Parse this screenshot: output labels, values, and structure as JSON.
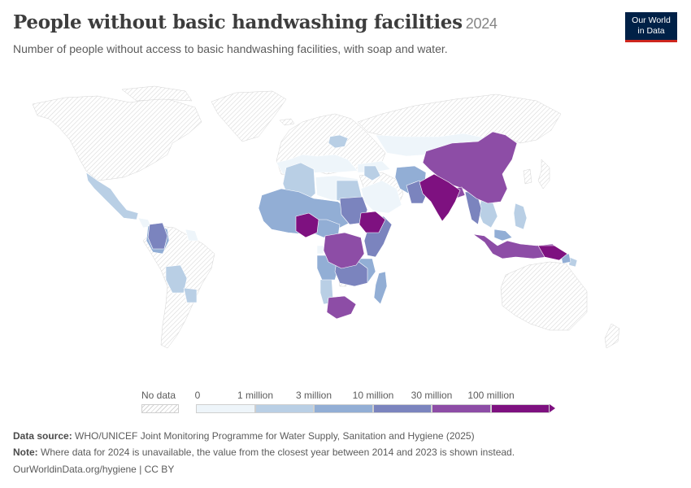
{
  "header": {
    "title": "People without basic handwashing facilities",
    "year": "2024",
    "subtitle": "Number of people without access to basic handwashing facilities, with soap and water."
  },
  "logo": {
    "line1": "Our World",
    "line2": "in Data"
  },
  "legend": {
    "no_data_label": "No data",
    "ticks": [
      "0",
      "1 million",
      "3 million",
      "10 million",
      "30 million",
      "100 million"
    ],
    "colors": [
      "#eef5fa",
      "#b9cfe5",
      "#92aed5",
      "#7b84be",
      "#8d4da6",
      "#7e1180"
    ]
  },
  "map_data": {
    "type": "choropleth",
    "color_key": {
      "nodata": "no data",
      "c0": "0 – 1 million",
      "c1": "1 – 3 million",
      "c2": "3 – 10 million",
      "c3": "10 – 30 million",
      "c4": "30 – 100 million",
      "c5": "100 million +"
    }
  },
  "footer": {
    "source_label": "Data source:",
    "source_text": "WHO/UNICEF Joint Monitoring Programme for Water Supply, Sanitation and Hygiene (2025)",
    "note_label": "Note:",
    "note_text": "Where data for 2024 is unavailable, the value from the closest year between 2014 and 2023 is shown instead.",
    "url": "OurWorldinData.org/hygiene | CC BY"
  }
}
